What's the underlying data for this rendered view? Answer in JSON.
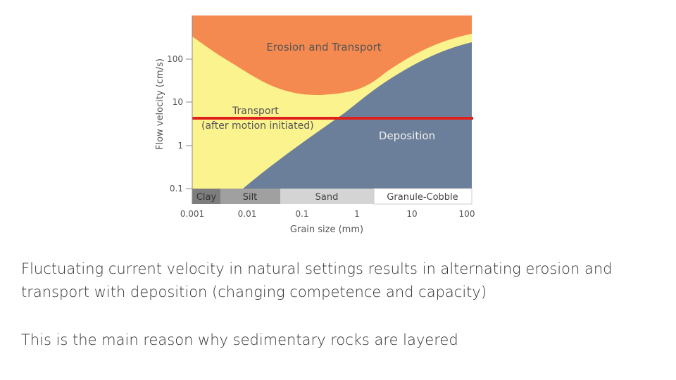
{
  "diagram": {
    "y_axis_label": "Flow velocity (cm/s)",
    "x_axis_label": "Grain size (mm)",
    "y_ticks": [
      "100",
      "10",
      "1",
      "0.1"
    ],
    "x_ticks": [
      "0.001",
      "0.01",
      "0.1",
      "1",
      "10",
      "100"
    ],
    "regions": [
      "Erosion and Transport",
      "Transport",
      "(after motion initiated)",
      "Deposition"
    ],
    "grain_classes": [
      "Clay",
      "Silt",
      "Sand",
      "Granule-Cobble"
    ]
  },
  "text": {
    "paragraph_1": "Fluctuating current velocity in natural settings results in alternating erosion and transport with deposition (changing competence and capacity)",
    "paragraph_2": "This is the main reason why sedimentary rocks are layered"
  }
}
